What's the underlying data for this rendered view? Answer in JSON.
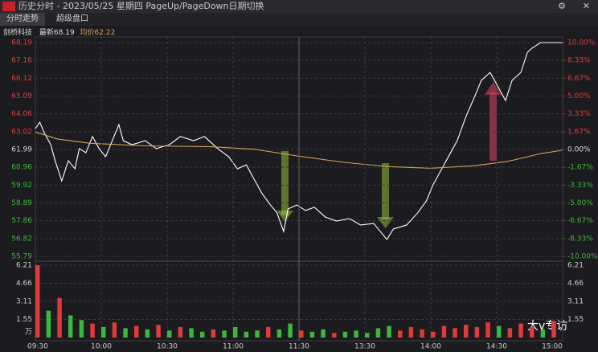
{
  "header": {
    "title": "历史分时 - 2023/05/25 星期四 PageUp/PageDown日期切换",
    "tabs": [
      "分时走势",
      "超级盘口"
    ]
  },
  "info": {
    "name": "剑桥科技",
    "latest": "最新68.19",
    "average": "均价62.22"
  },
  "watermark": "大v专访",
  "chart_data": [
    {
      "type": "line",
      "xlim": [
        0,
        240
      ],
      "ylim": [
        55.79,
        68.19
      ],
      "yticks": [
        68.19,
        67.16,
        66.12,
        65.09,
        64.06,
        63.02,
        61.99,
        60.96,
        59.92,
        58.89,
        57.86,
        56.82,
        55.79
      ],
      "y2lim": [
        -10,
        10
      ],
      "y2ticks": [
        {
          "value": 10,
          "label": "10.00%"
        },
        {
          "value": 8.33,
          "label": "8.33%"
        },
        {
          "value": 6.67,
          "label": "6.67%"
        },
        {
          "value": 5,
          "label": "5.00%"
        },
        {
          "value": 3.33,
          "label": "3.33%"
        },
        {
          "value": 1.67,
          "label": "1.67%"
        },
        {
          "value": 0,
          "label": "0.00%"
        },
        {
          "value": -1.67,
          "label": "-1.67%"
        },
        {
          "value": -3.33,
          "label": "-3.33%"
        },
        {
          "value": -5,
          "label": "-5.00%"
        },
        {
          "value": -6.67,
          "label": "-6.67%"
        },
        {
          "value": -8.33,
          "label": "-8.33%"
        },
        {
          "value": -10,
          "label": "-10.00%"
        }
      ],
      "grid": true,
      "series": [
        {
          "color": "#ffffff",
          "x": [
            0,
            2,
            4,
            7,
            9,
            12,
            15,
            18,
            20,
            23,
            26,
            29,
            32,
            35,
            38,
            40,
            44,
            50,
            55,
            61,
            66,
            72,
            77,
            83,
            88,
            92,
            96,
            99,
            103,
            107,
            110,
            113,
            115,
            119,
            123,
            127,
            132,
            137,
            143,
            148,
            154,
            160,
            163,
            169,
            174,
            178,
            181,
            185,
            189,
            192,
            196,
            200,
            203,
            207,
            211,
            214,
            217,
            221,
            224,
            226,
            230,
            240
          ],
          "values": [
            63.2,
            63.57,
            62.97,
            62.27,
            61.34,
            60.17,
            61.34,
            60.87,
            62.04,
            61.8,
            62.74,
            62.04,
            61.57,
            62.5,
            63.43,
            62.5,
            62.27,
            62.5,
            62.04,
            62.27,
            62.74,
            62.5,
            62.74,
            62.04,
            61.57,
            60.87,
            61.1,
            60.4,
            59.47,
            58.77,
            58.31,
            57.23,
            58.54,
            58.77,
            58.45,
            58.64,
            58.07,
            57.84,
            57.98,
            57.61,
            57.7,
            56.77,
            57.38,
            57.61,
            58.31,
            59.01,
            59.94,
            60.87,
            61.8,
            62.5,
            63.9,
            65.07,
            66.0,
            66.46,
            65.53,
            64.83,
            66.0,
            66.46,
            67.63,
            67.86,
            68.19,
            68.19
          ]
        },
        {
          "color": "#d9a05b",
          "x": [
            0,
            10,
            25,
            50,
            80,
            100,
            120,
            140,
            160,
            180,
            200,
            215,
            230,
            240
          ],
          "values": [
            63.0,
            62.6,
            62.35,
            62.2,
            62.15,
            62.0,
            61.6,
            61.25,
            61.0,
            60.9,
            61.05,
            61.3,
            61.75,
            61.95
          ]
        }
      ]
    },
    {
      "type": "bar",
      "xlim": [
        0,
        240
      ],
      "ylim": [
        0,
        6.21
      ],
      "yticks": [
        6.21,
        4.66,
        3.11,
        1.55
      ],
      "unit": "万",
      "xticks": [
        {
          "value": 0,
          "label": "09:30"
        },
        {
          "value": 30,
          "label": "10:00"
        },
        {
          "value": 60,
          "label": "10:30"
        },
        {
          "value": 90,
          "label": "11:00"
        },
        {
          "value": 120,
          "label": "11:30"
        },
        {
          "value": 150,
          "label": "13:30"
        },
        {
          "value": 180,
          "label": "14:00"
        },
        {
          "value": 210,
          "label": "14:30"
        },
        {
          "value": 240,
          "label": "15:00"
        }
      ],
      "x": [
        0,
        5,
        10,
        15,
        20,
        25,
        30,
        35,
        40,
        45,
        50,
        55,
        60,
        65,
        70,
        75,
        80,
        85,
        90,
        95,
        100,
        105,
        110,
        115,
        120,
        125,
        130,
        135,
        140,
        145,
        150,
        155,
        160,
        165,
        170,
        175,
        180,
        185,
        190,
        195,
        200,
        205,
        210,
        215,
        220,
        225,
        230,
        235
      ],
      "values": [
        6.21,
        2.3,
        3.4,
        1.9,
        1.5,
        1.2,
        0.9,
        1.3,
        0.8,
        1.0,
        0.7,
        1.1,
        0.6,
        0.9,
        0.8,
        0.5,
        0.7,
        0.6,
        0.9,
        0.5,
        0.6,
        0.9,
        0.7,
        1.2,
        0.6,
        0.5,
        0.7,
        0.4,
        0.5,
        0.6,
        0.4,
        0.8,
        1.0,
        0.6,
        0.9,
        0.7,
        0.5,
        1.0,
        0.8,
        1.1,
        0.9,
        1.3,
        1.0,
        0.8,
        1.2,
        0.9,
        0.7,
        1.4
      ],
      "colors": [
        "#e03a3a",
        "#3ab83a",
        "#e03a3a",
        "#3ab83a",
        "#3ab83a",
        "#e03a3a",
        "#3ab83a",
        "#e03a3a",
        "#3ab83a",
        "#e03a3a",
        "#3ab83a",
        "#e03a3a",
        "#3ab83a",
        "#e03a3a",
        "#3ab83a",
        "#3ab83a",
        "#e03a3a",
        "#3ab83a",
        "#3ab83a",
        "#3ab83a",
        "#3ab83a",
        "#e03a3a",
        "#3ab83a",
        "#3ab83a",
        "#e03a3a",
        "#3ab83a",
        "#3ab83a",
        "#e03a3a",
        "#3ab83a",
        "#3ab83a",
        "#3ab83a",
        "#3ab83a",
        "#3ab83a",
        "#e03a3a",
        "#e03a3a",
        "#e03a3a",
        "#e03a3a",
        "#e03a3a",
        "#e03a3a",
        "#e03a3a",
        "#e03a3a",
        "#e03a3a",
        "#3ab83a",
        "#e03a3a",
        "#e03a3a",
        "#e03a3a",
        "#3ab83a",
        "#e03a3a"
      ]
    }
  ]
}
